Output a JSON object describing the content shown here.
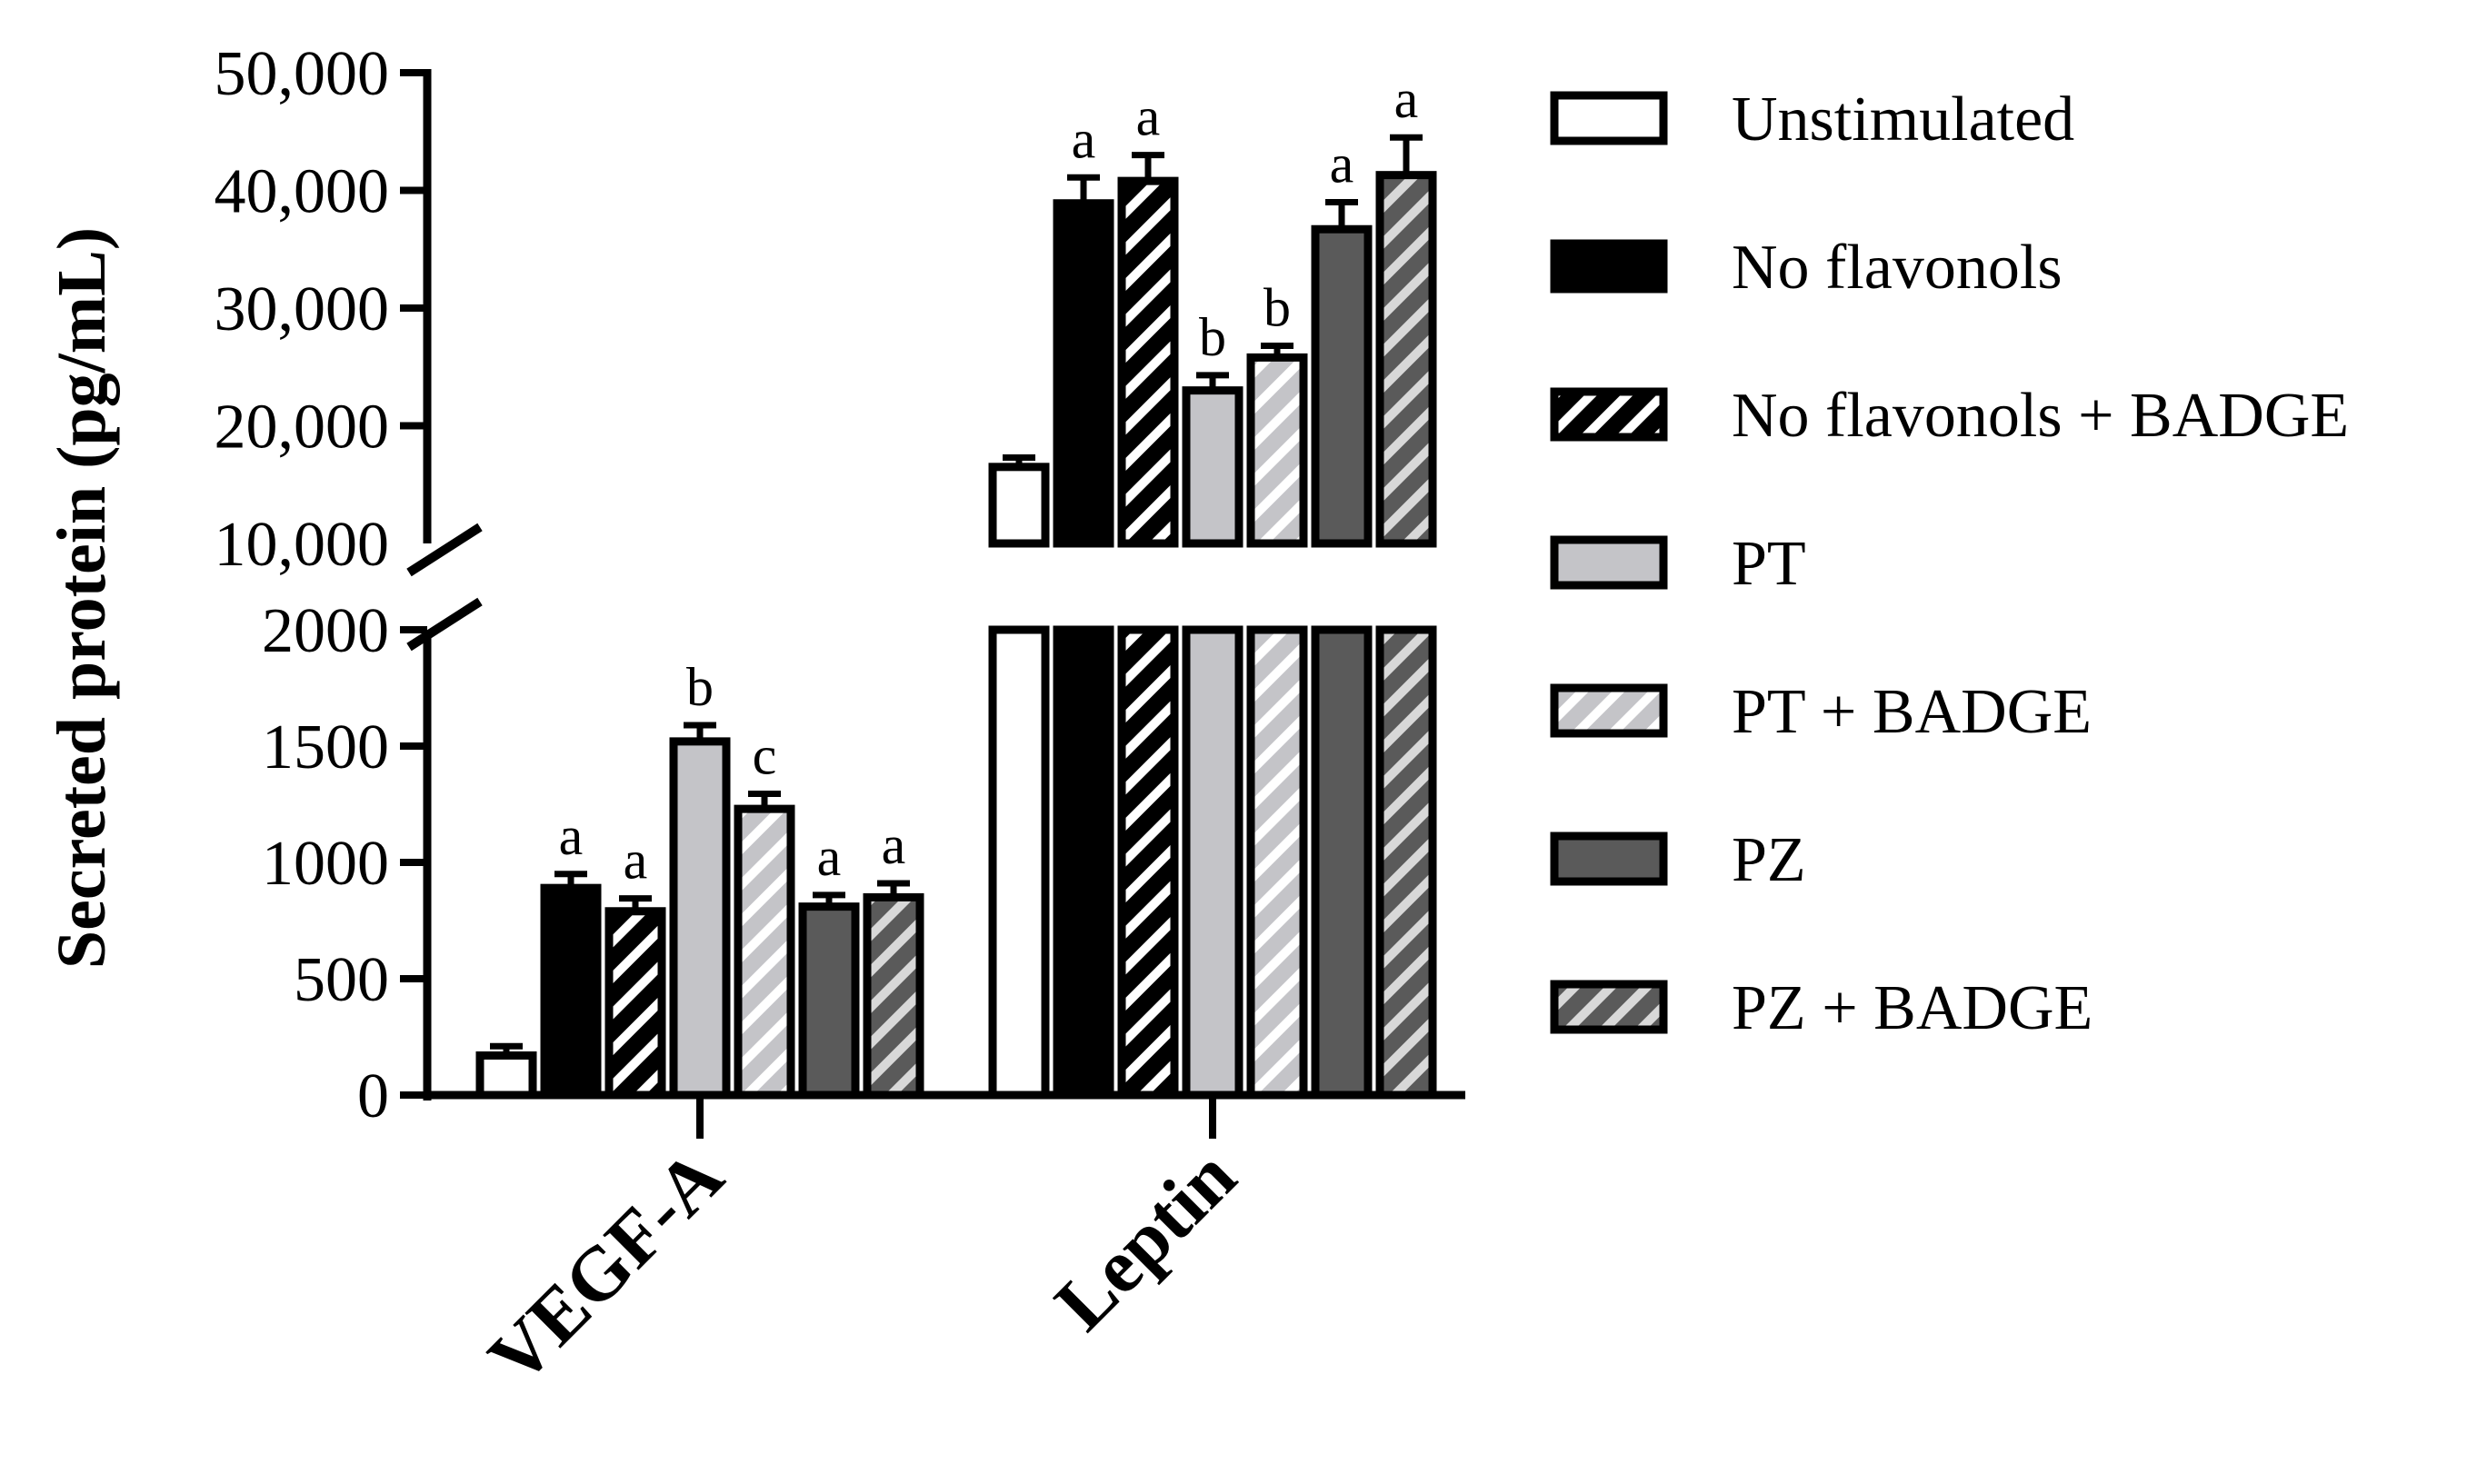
{
  "chart_data": {
    "type": "bar",
    "ylabel": "Secreted protein (pg/mL)",
    "categories": [
      "VEGF-A",
      "Leptin"
    ],
    "y_axis": {
      "broken": true,
      "lower_segment": {
        "range": [
          0,
          2000
        ],
        "ticks": [
          0,
          500,
          1000,
          1500,
          2000
        ],
        "tick_labels": [
          "0",
          "500",
          "1000",
          "1500",
          "2000"
        ]
      },
      "upper_segment": {
        "range": [
          10000,
          50000
        ],
        "ticks": [
          10000,
          20000,
          30000,
          40000,
          50000
        ],
        "tick_labels": [
          "10,000",
          "20,000",
          "30,000",
          "40,000",
          "50,000"
        ]
      }
    },
    "series": [
      {
        "name": "Unstimulated",
        "style": {
          "fill": "#ffffff",
          "hatch": false
        },
        "values": [
          170,
          16500
        ],
        "errors": [
          40,
          800
        ],
        "labels": [
          "",
          ""
        ]
      },
      {
        "name": "No flavonols",
        "style": {
          "fill": "#000000",
          "hatch": false
        },
        "values": [
          890,
          38900
        ],
        "errors": [
          60,
          2200
        ],
        "labels": [
          "a",
          "a"
        ]
      },
      {
        "name": "No flavonols + BADGE",
        "style": {
          "fill": "#000000",
          "hatch": true,
          "hatch_color": "#ffffff"
        },
        "values": [
          790,
          40800
        ],
        "errors": [
          55,
          2200
        ],
        "labels": [
          "a",
          "a"
        ]
      },
      {
        "name": "PT",
        "style": {
          "fill": "#c4c4c8",
          "hatch": false
        },
        "values": [
          1520,
          23000
        ],
        "errors": [
          70,
          1300
        ],
        "labels": [
          "b",
          "b"
        ]
      },
      {
        "name": "PT + BADGE",
        "style": {
          "fill": "#c4c4c8",
          "hatch": true,
          "hatch_color": "#ffffff"
        },
        "values": [
          1230,
          25800
        ],
        "errors": [
          65,
          1000
        ],
        "labels": [
          "c",
          "b"
        ]
      },
      {
        "name": "PZ",
        "style": {
          "fill": "#5a5a5a",
          "hatch": false
        },
        "values": [
          810,
          36700
        ],
        "errors": [
          50,
          2300
        ],
        "labels": [
          "a",
          "a"
        ]
      },
      {
        "name": "PZ + BADGE",
        "style": {
          "fill": "#5a5a5a",
          "hatch": true,
          "hatch_color": "#d8d8d8"
        },
        "values": [
          850,
          41300
        ],
        "errors": [
          60,
          3200
        ],
        "labels": [
          "a",
          "a"
        ]
      }
    ]
  }
}
